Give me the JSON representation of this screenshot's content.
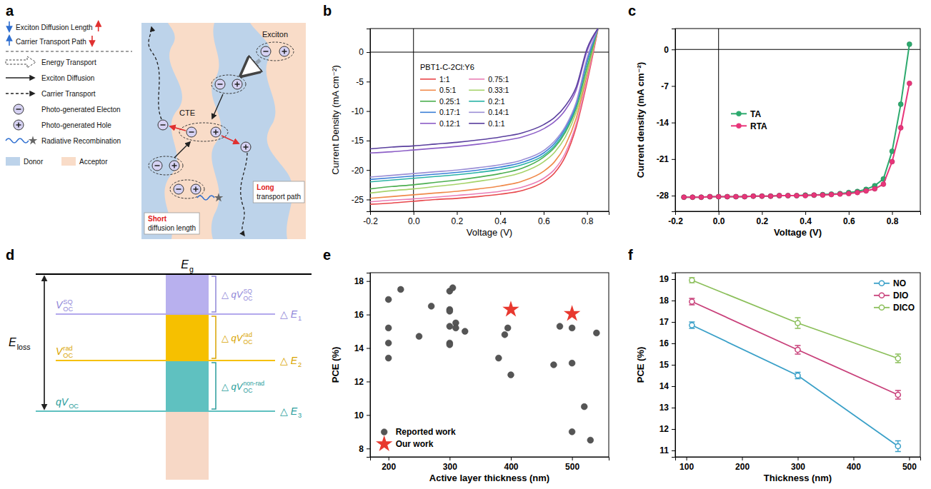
{
  "chart_data": [
    {
      "panel": "b",
      "type": "line",
      "x_label": "Voltage (V)",
      "y_label": "Current Density (mA cm⁻²)",
      "legend_title": "PBT1-C-2Cl:Y6",
      "legend": "upper left",
      "xlim": [
        -0.2,
        0.9
      ],
      "ylim": [
        -27,
        4
      ],
      "xticks": [
        -0.2,
        {
          "value": 0,
          "label": "0.0"
        },
        0.2,
        0.4,
        0.6,
        0.8
      ],
      "yticks": [
        -25,
        -20,
        -15,
        -10,
        -5,
        0
      ],
      "x": [
        -0.2,
        -0.1,
        0,
        0.1,
        0.2,
        0.3,
        0.4,
        0.5,
        0.6,
        0.65,
        0.7,
        0.75,
        0.8,
        0.85
      ],
      "series": [
        {
          "name": "1:1",
          "color": "#e8474b",
          "values": [
            -25.8,
            -25.6,
            -25.3,
            -25.0,
            -24.8,
            -24.5,
            -24.1,
            -23.5,
            -22.0,
            -20.5,
            -17.7,
            -12.7,
            -5.1,
            3.8
          ]
        },
        {
          "name": "0.75:1",
          "color": "#e97fb6",
          "values": [
            -25.4,
            -25.1,
            -24.9,
            -24.6,
            -24.3,
            -24.0,
            -23.6,
            -22.9,
            -21.4,
            -19.9,
            -17.1,
            -12.2,
            -4.6,
            4.0
          ]
        },
        {
          "name": "0.5:1",
          "color": "#f0894a",
          "values": [
            -24.8,
            -24.5,
            -24.2,
            -23.9,
            -23.6,
            -23.2,
            -22.7,
            -21.9,
            -20.2,
            -18.6,
            -15.8,
            -11.2,
            -3.8,
            4.0
          ]
        },
        {
          "name": "0.33:1",
          "color": "#a6d36a",
          "values": [
            -23.9,
            -23.5,
            -23.2,
            -22.8,
            -22.4,
            -21.9,
            -21.3,
            -20.4,
            -18.6,
            -17.0,
            -14.4,
            -10.2,
            -3.4,
            4.0
          ]
        },
        {
          "name": "0.25:1",
          "color": "#4caf50",
          "values": [
            -23.2,
            -22.8,
            -22.5,
            -22.1,
            -21.7,
            -21.2,
            -20.6,
            -19.7,
            -17.8,
            -16.2,
            -13.6,
            -9.5,
            -2.6,
            4.0
          ]
        },
        {
          "name": "0.2:1",
          "color": "#2ab3a6",
          "values": [
            -22.0,
            -21.7,
            -21.4,
            -21.1,
            -20.8,
            -20.4,
            -19.9,
            -19.1,
            -17.5,
            -15.9,
            -13.3,
            -9.1,
            -1.8,
            4.0
          ]
        },
        {
          "name": "0.17:1",
          "color": "#3b7fd6",
          "values": [
            -21.6,
            -21.3,
            -21.0,
            -20.7,
            -20.4,
            -20.0,
            -19.5,
            -18.7,
            -17.1,
            -15.5,
            -12.9,
            -8.8,
            -1.5,
            4.0
          ]
        },
        {
          "name": "0.14:1",
          "color": "#9b8fd6",
          "values": [
            -21.2,
            -20.9,
            -20.6,
            -20.3,
            -20.0,
            -19.6,
            -19.1,
            -18.3,
            -16.7,
            -15.1,
            -12.6,
            -8.5,
            -1.0,
            4.0
          ]
        },
        {
          "name": "0.12:1",
          "color": "#8d5fc7",
          "values": [
            -17.1,
            -16.9,
            -16.6,
            -16.3,
            -16.0,
            -15.6,
            -15.1,
            -14.4,
            -13.0,
            -11.8,
            -9.8,
            -6.4,
            0.2,
            4.0
          ]
        },
        {
          "name": "0.1:1",
          "color": "#5a3f9e",
          "values": [
            -16.4,
            -16.1,
            -15.9,
            -15.6,
            -15.3,
            -14.9,
            -14.4,
            -13.7,
            -12.3,
            -11.1,
            -9.1,
            -5.9,
            0.6,
            4.0
          ]
        }
      ]
    },
    {
      "panel": "c",
      "type": "line",
      "x_label": "Voltage (V)",
      "y_label": "Current density (mA cm⁻²)",
      "legend": "center left",
      "xlim": [
        -0.2,
        0.93
      ],
      "ylim": [
        -31,
        4
      ],
      "xticks": [
        -0.2,
        {
          "value": 0,
          "label": "0.0"
        },
        0.2,
        0.4,
        0.6,
        0.8
      ],
      "yticks": [
        0,
        -7,
        -14,
        -21,
        -28
      ],
      "x": [
        -0.16,
        -0.12,
        -0.08,
        -0.04,
        0,
        0.04,
        0.08,
        0.12,
        0.16,
        0.2,
        0.24,
        0.28,
        0.32,
        0.36,
        0.4,
        0.44,
        0.48,
        0.52,
        0.56,
        0.6,
        0.64,
        0.68,
        0.72,
        0.76,
        0.8,
        0.84,
        0.88
      ],
      "series": [
        {
          "name": "TA",
          "color": "#2daa6e",
          "marker": "circle",
          "values": [
            -28.3,
            -28.3,
            -28.3,
            -28.2,
            -28.2,
            -28.2,
            -28.2,
            -28.2,
            -28.1,
            -28.1,
            -28.1,
            -28.0,
            -28.0,
            -28.0,
            -27.9,
            -27.9,
            -27.8,
            -27.7,
            -27.6,
            -27.4,
            -27.2,
            -26.8,
            -26.1,
            -24.8,
            -19.5,
            -10.5,
            1.0
          ]
        },
        {
          "name": "RTA",
          "color": "#e8357a",
          "marker": "circle",
          "values": [
            -28.3,
            -28.3,
            -28.3,
            -28.2,
            -28.2,
            -28.2,
            -28.2,
            -28.2,
            -28.1,
            -28.1,
            -28.1,
            -28.0,
            -28.0,
            -28.0,
            -28.0,
            -27.9,
            -27.9,
            -27.8,
            -27.7,
            -27.6,
            -27.4,
            -27.1,
            -26.7,
            -25.8,
            -21.5,
            -15.0,
            -6.5
          ]
        }
      ]
    },
    {
      "panel": "e",
      "type": "scatter",
      "x_label": "Active layer thickness (nm)",
      "y_label": "PCE (%)",
      "legend": "lower left",
      "xlim": [
        170,
        560
      ],
      "ylim": [
        7.5,
        18.5
      ],
      "xticks": [
        200,
        300,
        400,
        500
      ],
      "yticks": [
        8,
        10,
        12,
        14,
        16,
        18
      ],
      "series": [
        {
          "name": "Reported work",
          "color": "#555555",
          "marker": "circle",
          "line_style": "none",
          "x": [
            200,
            200,
            200,
            200,
            220,
            250,
            270,
            300,
            305,
            300,
            300,
            300,
            300,
            300,
            310,
            310,
            325,
            380,
            390,
            395,
            400,
            470,
            480,
            500,
            500,
            500,
            520,
            530,
            540
          ],
          "values": [
            16.9,
            15.2,
            14.3,
            13.4,
            17.5,
            14.7,
            16.5,
            17.4,
            17.6,
            16.3,
            16.2,
            15.3,
            14.3,
            14.2,
            15.5,
            15.2,
            15.0,
            13.4,
            14.8,
            15.2,
            12.4,
            13.0,
            15.3,
            15.2,
            13.1,
            9.0,
            10.5,
            8.5,
            14.9
          ]
        },
        {
          "name": "Our work",
          "color": "#e8392f",
          "marker": "star",
          "line_style": "none",
          "x": [
            400,
            500
          ],
          "values": [
            16.3,
            16.05
          ]
        }
      ]
    },
    {
      "panel": "f",
      "type": "line",
      "x_label": "Thickness (nm)",
      "y_label": "PCE (%)",
      "legend": "upper right",
      "xlim": [
        80,
        520
      ],
      "ylim": [
        10.7,
        19.3
      ],
      "xticks": [
        100,
        200,
        300,
        400,
        500
      ],
      "yticks": [
        11,
        12,
        13,
        14,
        15,
        16,
        17,
        18,
        19
      ],
      "x": [
        110,
        300,
        480
      ],
      "series": [
        {
          "name": "NO",
          "color": "#3aa0c8",
          "marker": "circle",
          "values": [
            16.85,
            14.5,
            11.2
          ],
          "errors": [
            0.15,
            0.15,
            0.25
          ]
        },
        {
          "name": "DIO",
          "color": "#c8407a",
          "marker": "circle",
          "values": [
            17.95,
            15.7,
            13.6
          ],
          "errors": [
            0.15,
            0.2,
            0.2
          ]
        },
        {
          "name": "DICO",
          "color": "#8bbf5a",
          "marker": "circle",
          "values": [
            18.95,
            16.95,
            15.3
          ],
          "errors": [
            0.12,
            0.25,
            0.2
          ]
        }
      ]
    }
  ],
  "diagram_a": {
    "panel": "a",
    "key": {
      "diffusion_length": "Exciton Diffusion Length",
      "transport_path": "Carrier Transport Path",
      "energy_transport": "Energy Transport",
      "exciton_diffusion": "Exciton Diffusion",
      "carrier_transport": "Carrier Transport",
      "electron": "Photo-generated Electon",
      "hole": "Photo-generated Hole",
      "radiative": "Radiative Recombination",
      "donor": "Donor",
      "acceptor": "Acceptor"
    },
    "scene": {
      "exciton": "Exciton",
      "cte": "CTE",
      "long": {
        "highlight": "Long",
        "rest": "transport path"
      },
      "short": {
        "highlight": "Short",
        "rest": "diffusion length"
      }
    }
  },
  "diagram_d": {
    "panel": "d",
    "eg": {
      "base": "E",
      "sub": "g"
    },
    "eloss": {
      "base": "E",
      "sub": "loss"
    },
    "voc_sq": {
      "base": "V",
      "sub": "OC",
      "sup": "SQ"
    },
    "voc_rad": {
      "base": "V",
      "sub": "OC",
      "sup": "rad"
    },
    "qvoc": {
      "base": "qV",
      "sub": "OC"
    },
    "dq_sq": {
      "base": "△ qV",
      "sub": "OC",
      "sup": "SQ"
    },
    "dq_rad": {
      "base": "△ qV",
      "sub": "OC",
      "sup": "rad"
    },
    "dq_nonrad": {
      "base": "△ qV",
      "sub": "OC",
      "sup": "non-rad"
    },
    "de1": {
      "base": "△ E",
      "sub": "1"
    },
    "de2": {
      "base": "△ E",
      "sub": "2"
    },
    "de3": {
      "base": "△ E",
      "sub": "3"
    }
  }
}
